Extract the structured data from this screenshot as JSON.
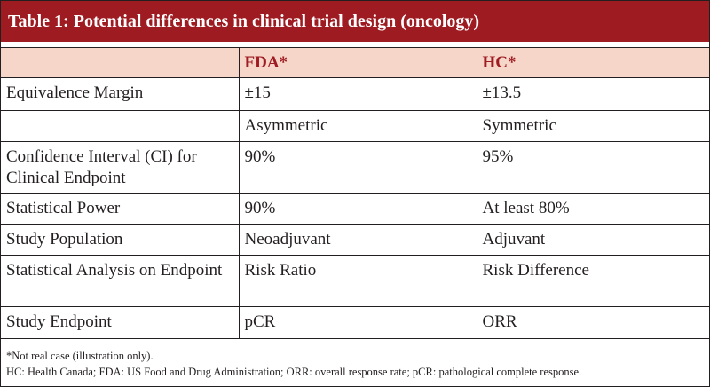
{
  "table": {
    "title": "Table 1: Potential differences in clinical trial design (oncology)",
    "headers": [
      "",
      "FDA*",
      "HC*"
    ],
    "rows": [
      [
        "Equivalence Margin",
        "±15",
        "±13.5"
      ],
      [
        "",
        "Asymmetric",
        "Symmetric"
      ],
      [
        "Confidence Interval (CI) for Clinical Endpoint",
        "90%",
        "95%"
      ],
      [
        "Statistical Power",
        "90%",
        "At least 80%"
      ],
      [
        "Study Population",
        "Neoadjuvant",
        "Adjuvant"
      ],
      [
        "Statistical Analysis on Endpoint",
        "Risk Ratio",
        "Risk Difference"
      ],
      [
        "Study Endpoint",
        "pCR",
        "ORR"
      ]
    ],
    "footnotes": [
      "*Not real case (illustration only).",
      "HC: Health Canada; FDA: US Food and Drug Administration; ORR: overall response rate; pCR: pathological complete response."
    ]
  },
  "colors": {
    "title_background": "#9e1b21",
    "header_background": "#f7d6ca",
    "header_text": "#9e1b21"
  }
}
